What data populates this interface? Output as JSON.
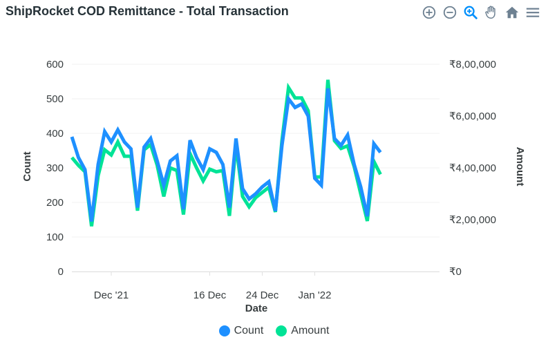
{
  "title": "ShipRocket COD Remittance - Total Transaction",
  "toolbar": {
    "icons": [
      "zoom-in-icon",
      "zoom-out-icon",
      "zoom-select-icon",
      "pan-hand-icon",
      "home-reset-icon",
      "menu-icon"
    ]
  },
  "colors": {
    "count": "#1e90ff",
    "amount": "#00e396",
    "grid": "#f0f0f0",
    "active_tool": "#008ffb",
    "inactive_tool": "#6e8192"
  },
  "legend": [
    {
      "label": "Count",
      "color": "#1e90ff"
    },
    {
      "label": "Amount",
      "color": "#00e396"
    }
  ],
  "chart_data": {
    "type": "line",
    "xlabel": "Date",
    "ylabel_left": "Count",
    "ylabel_right": "Amount",
    "ylim_left": [
      0,
      600
    ],
    "ylim_right": [
      0,
      800000
    ],
    "yticks_left": [
      "600",
      "500",
      "400",
      "300",
      "200",
      "100",
      "0"
    ],
    "yticks_right": [
      "₹8,00,000",
      "₹6,00,000",
      "₹4,00,000",
      "₹2,00,000",
      "₹0"
    ],
    "xticks": [
      "Dec '21",
      "16 Dec",
      "24 Dec",
      "Jan '22"
    ],
    "x_start": "2021-11-25",
    "x_end": "2022-01-20",
    "legend_position": "bottom",
    "grid": true,
    "series": [
      {
        "name": "Count",
        "axis": "left",
        "points": [
          [
            "2021-11-25",
            390
          ],
          [
            "2021-11-26",
            330
          ],
          [
            "2021-11-27",
            295
          ],
          [
            "2021-11-28",
            145
          ],
          [
            "2021-11-29",
            310
          ],
          [
            "2021-11-30",
            405
          ],
          [
            "2021-12-01",
            375
          ],
          [
            "2021-12-02",
            410
          ],
          [
            "2021-12-03",
            375
          ],
          [
            "2021-12-04",
            355
          ],
          [
            "2021-12-05",
            185
          ],
          [
            "2021-12-06",
            360
          ],
          [
            "2021-12-07",
            385
          ],
          [
            "2021-12-08",
            320
          ],
          [
            "2021-12-09",
            250
          ],
          [
            "2021-12-10",
            320
          ],
          [
            "2021-12-11",
            335
          ],
          [
            "2021-12-12",
            180
          ],
          [
            "2021-12-13",
            380
          ],
          [
            "2021-12-14",
            330
          ],
          [
            "2021-12-15",
            295
          ],
          [
            "2021-12-16",
            355
          ],
          [
            "2021-12-17",
            345
          ],
          [
            "2021-12-18",
            310
          ],
          [
            "2021-12-19",
            185
          ],
          [
            "2021-12-20",
            385
          ],
          [
            "2021-12-21",
            240
          ],
          [
            "2021-12-22",
            210
          ],
          [
            "2021-12-23",
            225
          ],
          [
            "2021-12-24",
            245
          ],
          [
            "2021-12-25",
            260
          ],
          [
            "2021-12-26",
            175
          ],
          [
            "2021-12-27",
            365
          ],
          [
            "2021-12-28",
            500
          ],
          [
            "2021-12-29",
            475
          ],
          [
            "2021-12-30",
            485
          ],
          [
            "2021-12-31",
            450
          ],
          [
            "2022-01-01",
            270
          ],
          [
            "2022-01-02",
            250
          ],
          [
            "2022-01-03",
            530
          ],
          [
            "2022-01-04",
            385
          ],
          [
            "2022-01-05",
            365
          ],
          [
            "2022-01-06",
            395
          ],
          [
            "2022-01-07",
            310
          ],
          [
            "2022-01-08",
            245
          ],
          [
            "2022-01-09",
            160
          ],
          [
            "2022-01-10",
            370
          ],
          [
            "2022-01-11",
            345
          ]
        ]
      },
      {
        "name": "Amount",
        "axis": "right",
        "points": [
          [
            "2021-11-25",
            440000
          ],
          [
            "2021-11-26",
            410000
          ],
          [
            "2021-11-27",
            385000
          ],
          [
            "2021-11-28",
            175000
          ],
          [
            "2021-11-29",
            370000
          ],
          [
            "2021-11-30",
            470000
          ],
          [
            "2021-12-01",
            450000
          ],
          [
            "2021-12-02",
            500000
          ],
          [
            "2021-12-03",
            445000
          ],
          [
            "2021-12-04",
            445000
          ],
          [
            "2021-12-05",
            235000
          ],
          [
            "2021-12-06",
            470000
          ],
          [
            "2021-12-07",
            490000
          ],
          [
            "2021-12-08",
            410000
          ],
          [
            "2021-12-09",
            290000
          ],
          [
            "2021-12-10",
            400000
          ],
          [
            "2021-12-11",
            390000
          ],
          [
            "2021-12-12",
            220000
          ],
          [
            "2021-12-13",
            455000
          ],
          [
            "2021-12-14",
            400000
          ],
          [
            "2021-12-15",
            350000
          ],
          [
            "2021-12-16",
            395000
          ],
          [
            "2021-12-17",
            385000
          ],
          [
            "2021-12-18",
            390000
          ],
          [
            "2021-12-19",
            215000
          ],
          [
            "2021-12-20",
            490000
          ],
          [
            "2021-12-21",
            290000
          ],
          [
            "2021-12-22",
            250000
          ],
          [
            "2021-12-23",
            285000
          ],
          [
            "2021-12-24",
            305000
          ],
          [
            "2021-12-25",
            325000
          ],
          [
            "2021-12-26",
            230000
          ],
          [
            "2021-12-27",
            505000
          ],
          [
            "2021-12-28",
            710000
          ],
          [
            "2021-12-29",
            670000
          ],
          [
            "2021-12-30",
            670000
          ],
          [
            "2021-12-31",
            620000
          ],
          [
            "2022-01-01",
            365000
          ],
          [
            "2022-01-02",
            365000
          ],
          [
            "2022-01-03",
            740000
          ],
          [
            "2022-01-04",
            505000
          ],
          [
            "2022-01-05",
            475000
          ],
          [
            "2022-01-06",
            485000
          ],
          [
            "2022-01-07",
            405000
          ],
          [
            "2022-01-08",
            300000
          ],
          [
            "2022-01-09",
            195000
          ],
          [
            "2022-01-10",
            425000
          ],
          [
            "2022-01-11",
            375000
          ]
        ]
      }
    ]
  }
}
